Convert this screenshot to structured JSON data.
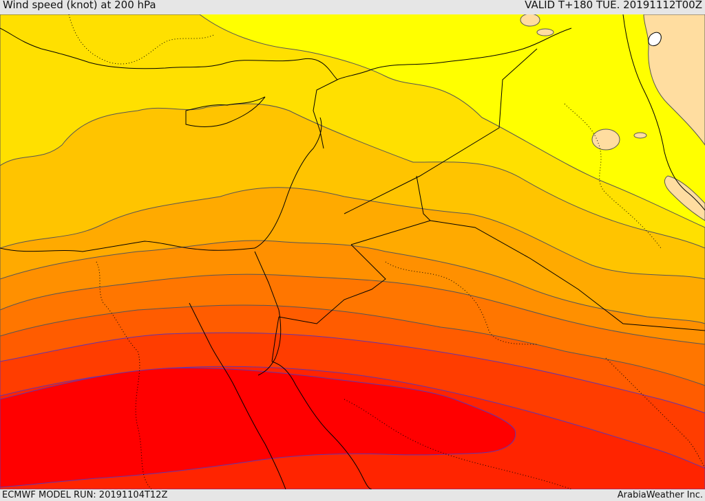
{
  "header": {
    "title": "Wind speed (knot) at 200 hPa",
    "valid": "VALID T+180 TUE. 20191112T00Z"
  },
  "footer": {
    "model_run": "ECMWF MODEL RUN: 20191104T12Z",
    "credit": "ArabiaWeather Inc."
  },
  "colors": {
    "band_fills": [
      "#ffff00",
      "#ffe000",
      "#ffc400",
      "#ffaa00",
      "#ff9000",
      "#ff7600",
      "#ff5c00",
      "#ff3d00",
      "#ff2400",
      "#ff0000"
    ],
    "light_patch": "#ffdda0",
    "white_patch": "#ffffff",
    "contour_line": "#555555",
    "coast_line": "#000000",
    "background": "#e6e6e6"
  }
}
